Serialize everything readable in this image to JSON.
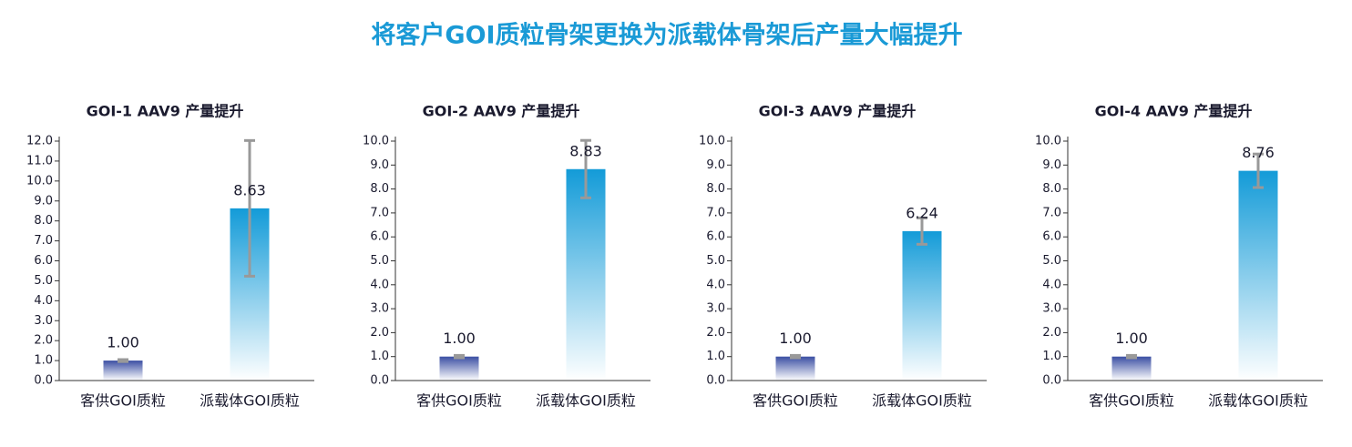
{
  "title": "将客户GOI质粒骨架更换为派载体骨架后产量大幅提升",
  "chart_data": [
    {
      "type": "bar",
      "title": "GOI-1 AAV9 产量提升",
      "categories": [
        "客供GOI质粒",
        "派载体GOI质粒"
      ],
      "values": [
        1,
        8.63
      ],
      "value_labels": [
        "1.00",
        "8.63"
      ],
      "errors": [
        0.05,
        3.4
      ],
      "colors": [
        "#3b4fa3",
        "#139bd8"
      ],
      "ylim": [
        0,
        12
      ],
      "yticks": [
        {
          "value": 0,
          "label": "0.0"
        },
        {
          "value": 1,
          "label": "1.0"
        },
        {
          "value": 2,
          "label": "2.0"
        },
        {
          "value": 3,
          "label": "3.0"
        },
        {
          "value": 4,
          "label": "4.0"
        },
        {
          "value": 5,
          "label": "5.0"
        },
        {
          "value": 6,
          "label": "6.0"
        },
        {
          "value": 7,
          "label": "7.0"
        },
        {
          "value": 8,
          "label": "8.0"
        },
        {
          "value": 9,
          "label": "9.0"
        },
        {
          "value": 10,
          "label": "10.0"
        },
        {
          "value": 11,
          "label": "11.0"
        },
        {
          "value": 12,
          "label": "12.0"
        }
      ]
    },
    {
      "type": "bar",
      "title": "GOI-2 AAV9 产量提升",
      "categories": [
        "客供GOI质粒",
        "派载体GOI质粒"
      ],
      "values": [
        1,
        8.83
      ],
      "value_labels": [
        "1.00",
        "8.83"
      ],
      "errors": [
        0.05,
        1.2
      ],
      "colors": [
        "#3b4fa3",
        "#139bd8"
      ],
      "ylim": [
        0,
        10
      ],
      "yticks": [
        {
          "value": 0,
          "label": "0.0"
        },
        {
          "value": 1,
          "label": "1.0"
        },
        {
          "value": 2,
          "label": "2.0"
        },
        {
          "value": 3,
          "label": "3.0"
        },
        {
          "value": 4,
          "label": "4.0"
        },
        {
          "value": 5,
          "label": "5.0"
        },
        {
          "value": 6,
          "label": "6.0"
        },
        {
          "value": 7,
          "label": "7.0"
        },
        {
          "value": 8,
          "label": "8.0"
        },
        {
          "value": 9,
          "label": "9.0"
        },
        {
          "value": 10,
          "label": "10.0"
        }
      ]
    },
    {
      "type": "bar",
      "title": "GOI-3 AAV9 产量提升",
      "categories": [
        "客供GOI质粒",
        "派载体GOI质粒"
      ],
      "values": [
        1,
        6.24
      ],
      "value_labels": [
        "1.00",
        "6.24"
      ],
      "errors": [
        0.05,
        0.55
      ],
      "colors": [
        "#3b4fa3",
        "#139bd8"
      ],
      "ylim": [
        0,
        10
      ],
      "yticks": [
        {
          "value": 0,
          "label": "0.0"
        },
        {
          "value": 1,
          "label": "1.0"
        },
        {
          "value": 2,
          "label": "2.0"
        },
        {
          "value": 3,
          "label": "3.0"
        },
        {
          "value": 4,
          "label": "4.0"
        },
        {
          "value": 5,
          "label": "5.0"
        },
        {
          "value": 6,
          "label": "6.0"
        },
        {
          "value": 7,
          "label": "7.0"
        },
        {
          "value": 8,
          "label": "8.0"
        },
        {
          "value": 9,
          "label": "9.0"
        },
        {
          "value": 10,
          "label": "10.0"
        }
      ]
    },
    {
      "type": "bar",
      "title": "GOI-4 AAV9 产量提升",
      "categories": [
        "客供GOI质粒",
        "派载体GOI质粒"
      ],
      "values": [
        1,
        8.76
      ],
      "value_labels": [
        "1.00",
        "8.76"
      ],
      "errors": [
        0.05,
        0.7
      ],
      "colors": [
        "#3b4fa3",
        "#139bd8"
      ],
      "ylim": [
        0,
        10
      ],
      "yticks": [
        {
          "value": 0,
          "label": "0.0"
        },
        {
          "value": 1,
          "label": "1.0"
        },
        {
          "value": 2,
          "label": "2.0"
        },
        {
          "value": 3,
          "label": "3.0"
        },
        {
          "value": 4,
          "label": "4.0"
        },
        {
          "value": 5,
          "label": "5.0"
        },
        {
          "value": 6,
          "label": "6.0"
        },
        {
          "value": 7,
          "label": "7.0"
        },
        {
          "value": 8,
          "label": "8.0"
        },
        {
          "value": 9,
          "label": "9.0"
        },
        {
          "value": 10,
          "label": "10.0"
        }
      ]
    }
  ]
}
